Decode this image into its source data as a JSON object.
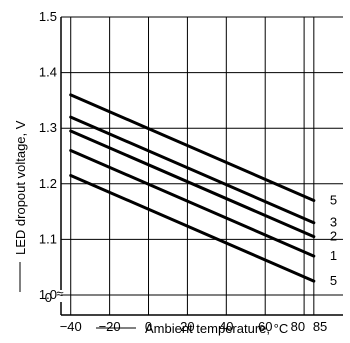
{
  "chart_data": {
    "type": "line",
    "xlabel": "Ambient temperature, °C",
    "ylabel": "LED dropout voltage, V",
    "xlim": [
      -45,
      100
    ],
    "ylim": [
      0.95,
      1.5
    ],
    "grid": true,
    "x_ticks": [
      -40,
      -20,
      0,
      20,
      40,
      60,
      80,
      85
    ],
    "x_tick_labels": [
      "−40",
      "−20",
      "0",
      "20",
      "40",
      "60",
      "80",
      "85"
    ],
    "y_ticks": [
      1.0,
      1.1,
      1.2,
      1.3,
      1.4,
      1.5
    ],
    "y_tick_labels": [
      "1.0",
      "1.1",
      "1.2",
      "1.3",
      "1.4",
      "1.5"
    ],
    "y_zero_label": "0",
    "axis_break": "≈",
    "series": [
      {
        "label": "5",
        "x": [
          -40,
          85
        ],
        "y": [
          1.36,
          1.17
        ]
      },
      {
        "label": "3",
        "x": [
          -40,
          85
        ],
        "y": [
          1.32,
          1.13
        ]
      },
      {
        "label": "2",
        "x": [
          -40,
          85
        ],
        "y": [
          1.295,
          1.105
        ]
      },
      {
        "label": "1",
        "x": [
          -40,
          85
        ],
        "y": [
          1.26,
          1.07
        ]
      },
      {
        "label": "5",
        "x": [
          -40,
          85
        ],
        "y": [
          1.215,
          1.025
        ]
      }
    ]
  }
}
